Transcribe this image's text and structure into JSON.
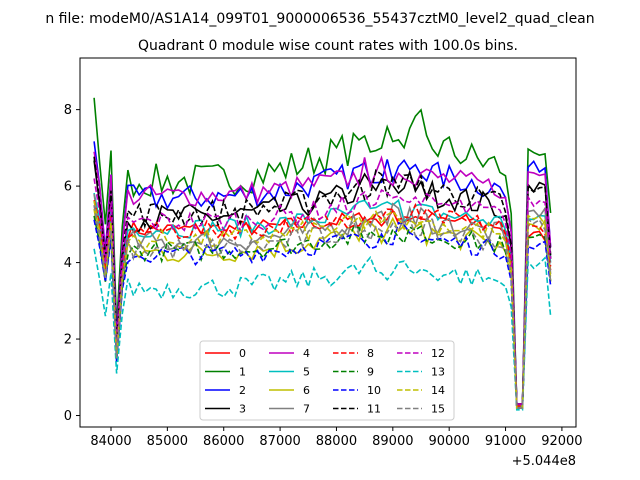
{
  "chart_data": {
    "type": "line",
    "suptitle": "n file: modeM0/AS1A14_099T01_9000006536_55437cztM0_level2_quad_clean",
    "title": "Quadrant 0 module wise count rates with 100.0s bins.",
    "xlabel": "",
    "ylabel": "",
    "offset_label": "+5.044e8",
    "xlim": [
      83450,
      92250
    ],
    "ylim": [
      -0.3,
      9.35
    ],
    "xticks": [
      84000,
      85000,
      86000,
      87000,
      88000,
      89000,
      90000,
      91000,
      92000
    ],
    "yticks": [
      0,
      2,
      4,
      6,
      8
    ],
    "legend": {
      "position": "lower-center",
      "columns": 4
    },
    "x_start": 83700,
    "x_step": 100,
    "x_break": 91100,
    "series": [
      {
        "name": "0",
        "color": "#ff0000",
        "dash": "solid",
        "base": 5.0,
        "amp": 0.55,
        "lows": [
          3.8,
          1.6,
          0.25,
          4.7
        ],
        "peak": 5.6,
        "end": 3.8
      },
      {
        "name": "1",
        "color": "#008000",
        "dash": "solid",
        "base": 6.6,
        "amp": 1.9,
        "lows": [
          5.0,
          2.3,
          0.3,
          6.9
        ],
        "peak": 8.3,
        "end": 5.3
      },
      {
        "name": "2",
        "color": "#0000ff",
        "dash": "solid",
        "base": 6.0,
        "amp": 1.3,
        "lows": [
          4.3,
          2.0,
          0.3,
          6.5
        ],
        "peak": 7.6,
        "end": 4.4
      },
      {
        "name": "3",
        "color": "#000000",
        "dash": "solid",
        "base": 5.5,
        "amp": 1.3,
        "lows": [
          4.0,
          1.8,
          0.3,
          6.0
        ],
        "peak": 6.6,
        "end": 4.1
      },
      {
        "name": "4",
        "color": "#bf00bf",
        "dash": "solid",
        "base": 6.0,
        "amp": 1.0,
        "lows": [
          4.2,
          1.9,
          0.3,
          6.3
        ],
        "peak": 6.8,
        "end": 4.4
      },
      {
        "name": "5",
        "color": "#00bfbf",
        "dash": "solid",
        "base": 5.1,
        "amp": 0.8,
        "lows": [
          3.9,
          1.6,
          0.25,
          5.2
        ],
        "peak": 6.4,
        "end": 4.0
      },
      {
        "name": "6",
        "color": "#bfbf00",
        "dash": "solid",
        "base": 4.5,
        "amp": 1.0,
        "lows": [
          3.6,
          1.5,
          0.2,
          5.0
        ],
        "peak": 6.0,
        "end": 3.5
      },
      {
        "name": "7",
        "color": "#808080",
        "dash": "solid",
        "base": 4.8,
        "amp": 1.1,
        "lows": [
          3.7,
          1.6,
          0.25,
          5.3
        ],
        "peak": 6.1,
        "end": 3.7
      },
      {
        "name": "8",
        "color": "#ff0000",
        "dash": "dashed",
        "base": 5.0,
        "amp": 0.7,
        "lows": [
          3.8,
          1.6,
          0.25,
          4.9
        ],
        "peak": 6.1,
        "end": 3.9
      },
      {
        "name": "9",
        "color": "#008000",
        "dash": "dashed",
        "base": 4.5,
        "amp": 0.8,
        "lows": [
          3.5,
          1.4,
          0.2,
          4.6
        ],
        "peak": 5.6,
        "end": 3.5
      },
      {
        "name": "10",
        "color": "#0000ff",
        "dash": "dashed",
        "base": 4.4,
        "amp": 0.8,
        "lows": [
          3.5,
          1.4,
          0.2,
          4.5
        ],
        "peak": 5.4,
        "end": 3.4
      },
      {
        "name": "11",
        "color": "#000000",
        "dash": "dashed",
        "base": 5.6,
        "amp": 1.3,
        "lows": [
          4.1,
          1.8,
          0.3,
          5.9
        ],
        "peak": 6.2,
        "end": 4.2
      },
      {
        "name": "12",
        "color": "#bf00bf",
        "dash": "dashed",
        "base": 5.3,
        "amp": 1.0,
        "lows": [
          4.0,
          1.7,
          0.3,
          5.6
        ],
        "peak": 6.1,
        "end": 4.1
      },
      {
        "name": "13",
        "color": "#00bfbf",
        "dash": "dashed",
        "base": 3.55,
        "amp": 0.9,
        "lows": [
          2.6,
          1.1,
          0.15,
          4.0
        ],
        "peak": 4.5,
        "end": 2.6
      },
      {
        "name": "14",
        "color": "#bfbf00",
        "dash": "dashed",
        "base": 4.8,
        "amp": 0.9,
        "lows": [
          3.6,
          1.5,
          0.2,
          5.1
        ],
        "peak": 6.1,
        "end": 3.6
      },
      {
        "name": "15",
        "color": "#808080",
        "dash": "dashed",
        "base": 4.6,
        "amp": 1.0,
        "lows": [
          3.6,
          1.5,
          0.2,
          5.0
        ],
        "peak": 5.5,
        "end": 3.5
      }
    ]
  }
}
